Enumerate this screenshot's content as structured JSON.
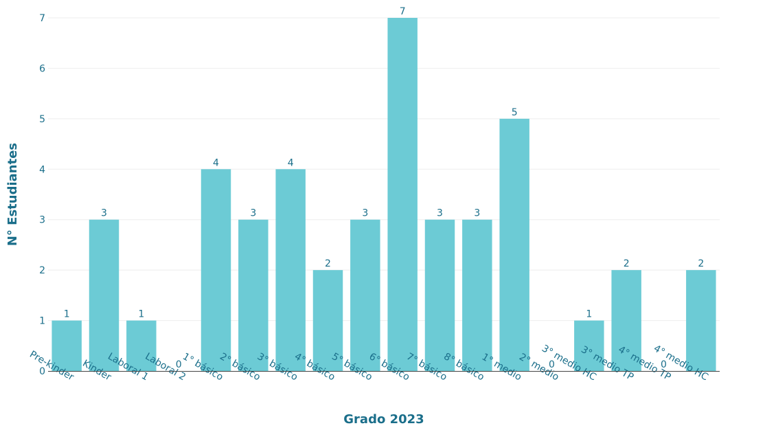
{
  "chart_data": {
    "type": "bar",
    "title": "",
    "xlabel": "Grado 2023",
    "ylabel": "N° Estudiantes",
    "ylim": [
      0,
      7
    ],
    "yticks": [
      0,
      1,
      2,
      3,
      4,
      5,
      6,
      7
    ],
    "grid": true,
    "categories": [
      "Pre-kinder",
      "Kinder",
      "Laboral 1",
      "Laboral 2",
      "1° básico",
      "2° básico",
      "3° básico",
      "4° básico",
      "5° básico",
      "6° básico",
      "7° básico",
      "8° básico",
      "1° medio",
      "2° medio",
      "3° medio HC",
      "3° medio TP",
      "4° medio TP",
      "4° medio HC"
    ],
    "values": [
      1,
      3,
      1,
      0,
      4,
      3,
      4,
      2,
      3,
      7,
      3,
      3,
      5,
      0,
      1,
      2,
      0,
      2
    ],
    "colors": {
      "bar": "#6ccbd5",
      "text": "#1a6e8a",
      "grid": "#eeeeee",
      "axis": "#444444"
    }
  }
}
